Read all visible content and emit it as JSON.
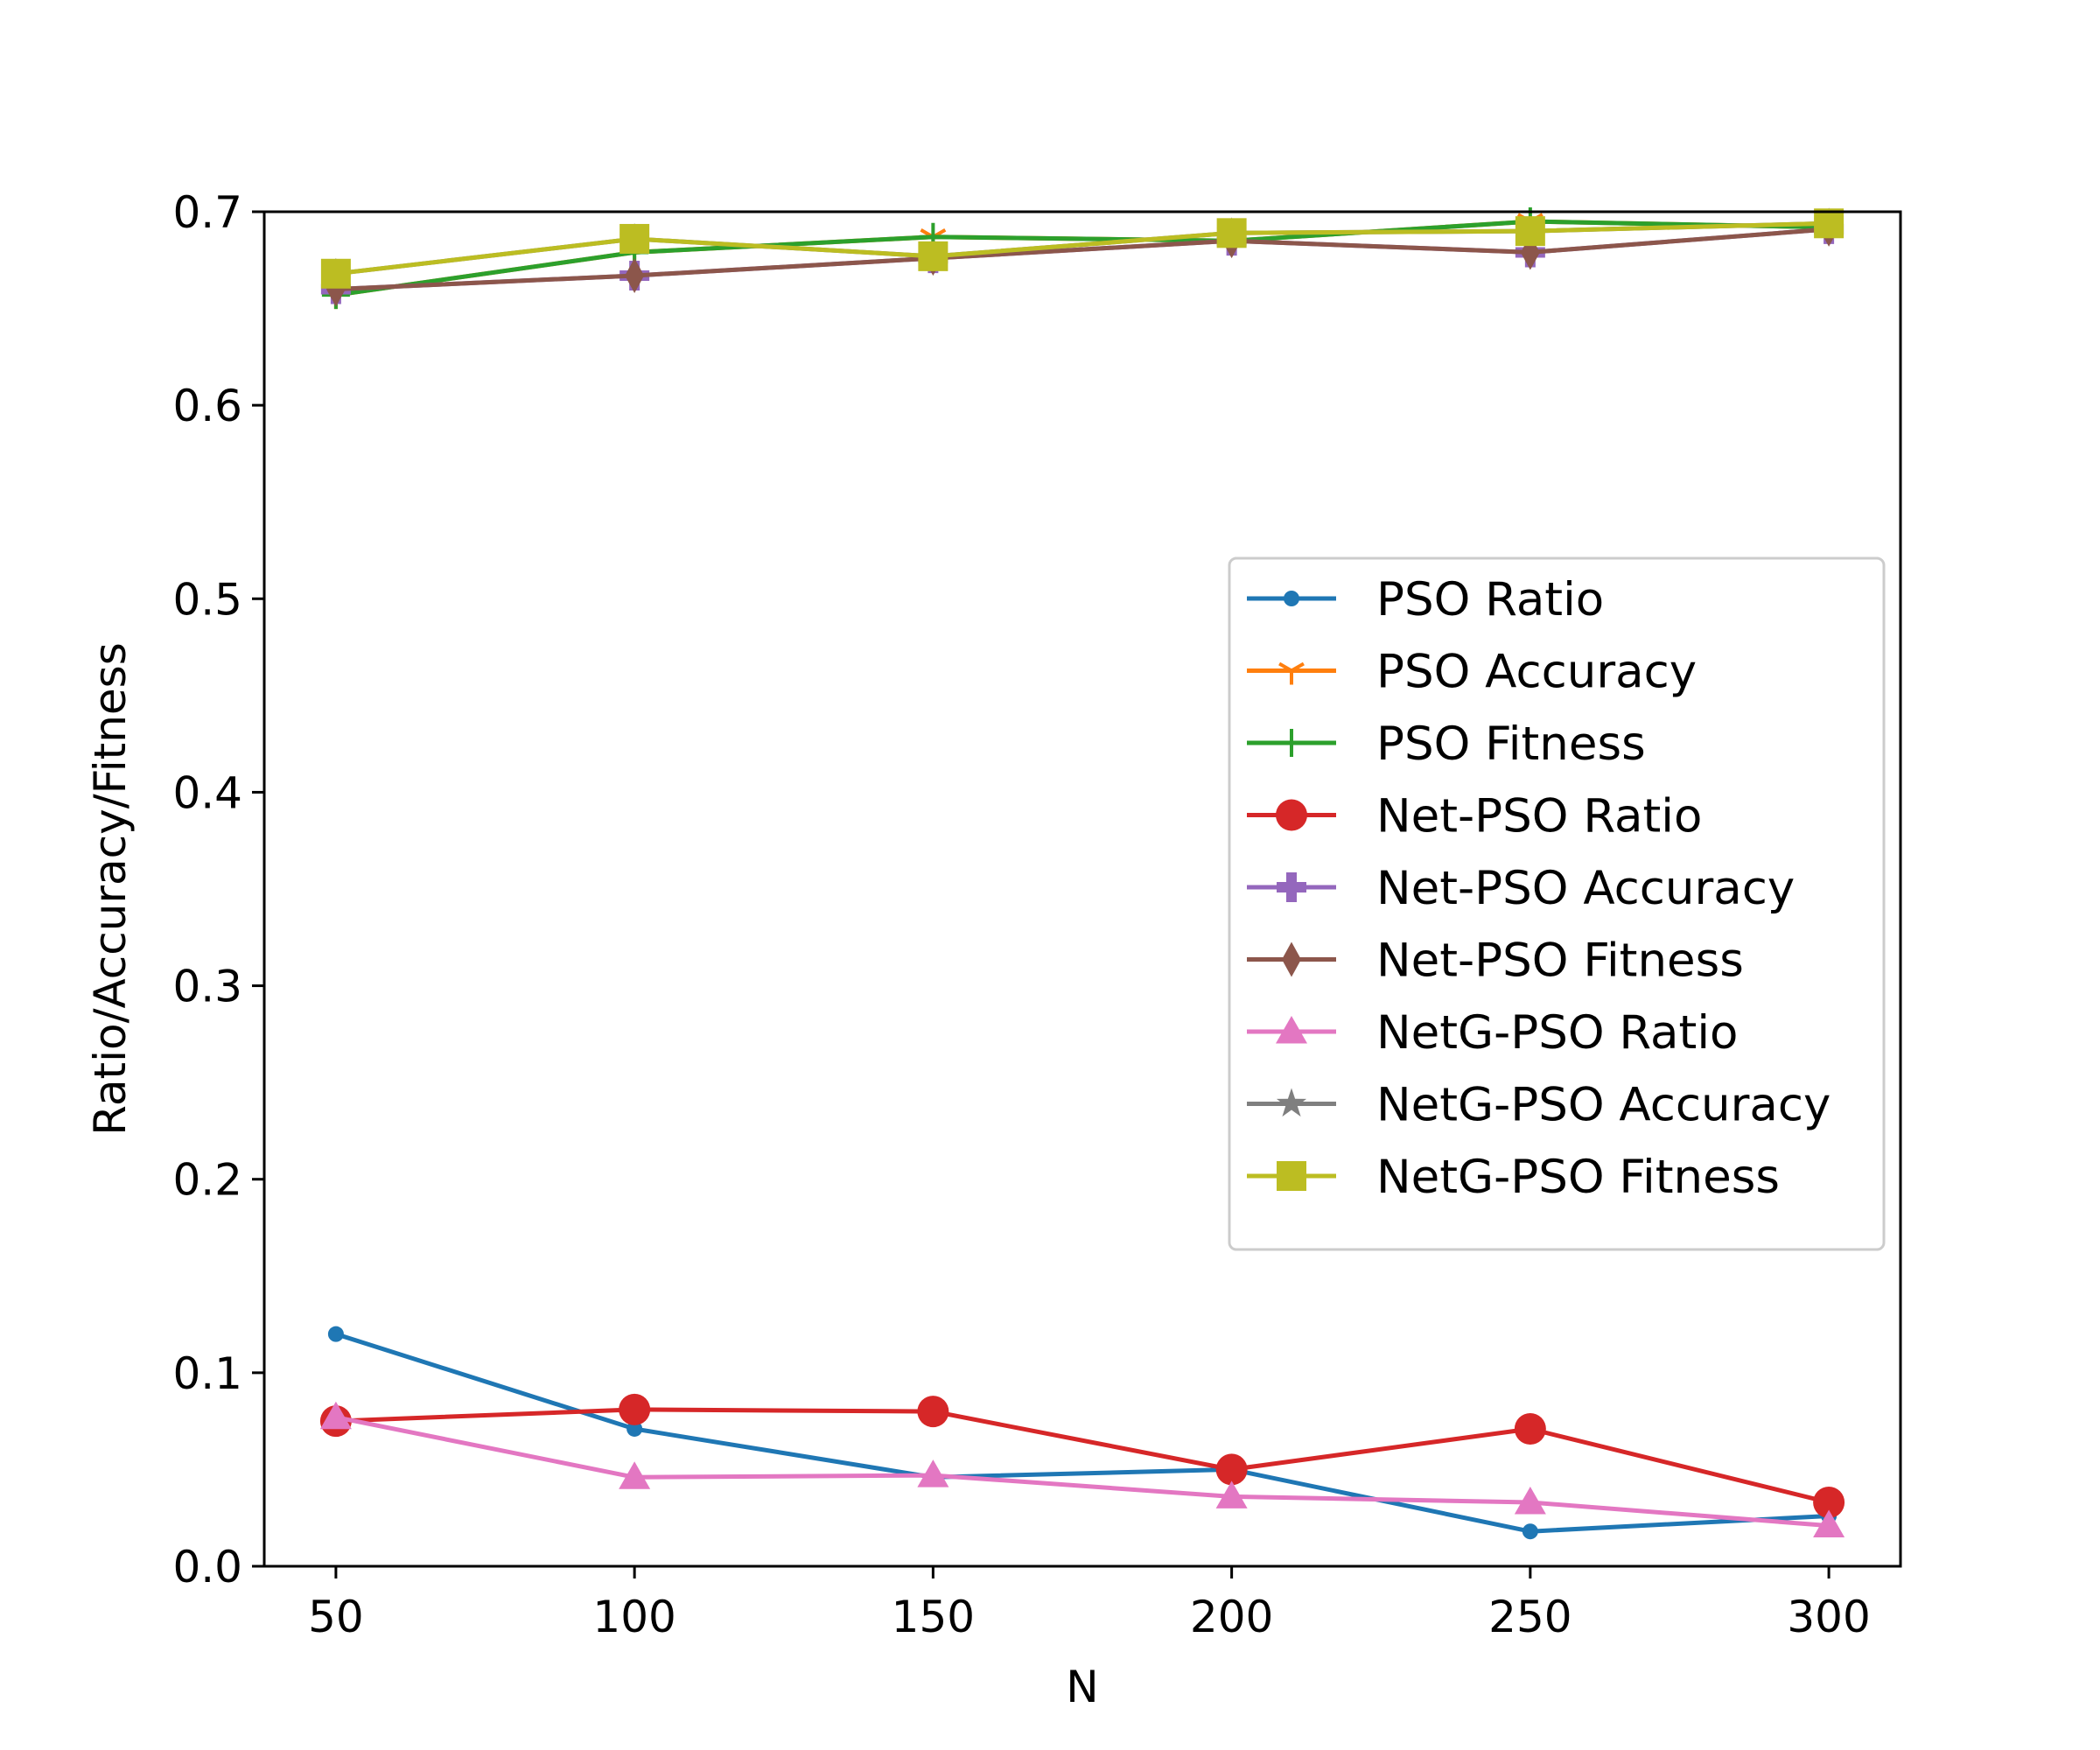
{
  "chart_data": {
    "type": "line",
    "title": "",
    "xlabel": "N",
    "ylabel": "Ratio/Accuracy/Fitness",
    "x": [
      50,
      100,
      150,
      200,
      250,
      300
    ],
    "xlim": [
      38,
      312
    ],
    "ylim": [
      0.0,
      0.7
    ],
    "xticks": [
      "50",
      "100",
      "150",
      "200",
      "250",
      "300"
    ],
    "yticks": [
      "0.0",
      "0.1",
      "0.2",
      "0.3",
      "0.4",
      "0.5",
      "0.6",
      "0.7"
    ],
    "grid": false,
    "legend_position": "center-right",
    "series": [
      {
        "name": "PSO Ratio",
        "color": "#1f77b4",
        "marker": "point",
        "values": [
          0.12,
          0.071,
          0.046,
          0.05,
          0.018,
          0.026
        ]
      },
      {
        "name": "PSO Accuracy",
        "color": "#ff7f0e",
        "marker": "tri_down",
        "values": [
          0.657,
          0.679,
          0.687,
          0.685,
          0.695,
          0.692
        ]
      },
      {
        "name": "PSO Fitness",
        "color": "#2ca02c",
        "marker": "plus",
        "values": [
          0.657,
          0.679,
          0.687,
          0.685,
          0.695,
          0.692
        ]
      },
      {
        "name": "Net-PSO Ratio",
        "color": "#d62728",
        "marker": "circle",
        "values": [
          0.075,
          0.081,
          0.08,
          0.05,
          0.071,
          0.033
        ]
      },
      {
        "name": "Net-PSO Accuracy",
        "color": "#9467bd",
        "marker": "plus_filled",
        "values": [
          0.66,
          0.667,
          0.676,
          0.685,
          0.679,
          0.691
        ]
      },
      {
        "name": "Net-PSO Fitness",
        "color": "#8c564b",
        "marker": "thin_diamond",
        "values": [
          0.66,
          0.667,
          0.676,
          0.685,
          0.679,
          0.691
        ]
      },
      {
        "name": "NetG-PSO Ratio",
        "color": "#e377c2",
        "marker": "triangle",
        "values": [
          0.077,
          0.046,
          0.047,
          0.036,
          0.033,
          0.021
        ]
      },
      {
        "name": "NetG-PSO Accuracy",
        "color": "#7f7f7f",
        "marker": "star",
        "values": [
          0.668,
          0.686,
          0.677,
          0.689,
          0.69,
          0.694
        ]
      },
      {
        "name": "NetG-PSO Fitness",
        "color": "#bcbd22",
        "marker": "square",
        "values": [
          0.668,
          0.686,
          0.677,
          0.689,
          0.69,
          0.694
        ]
      }
    ]
  }
}
